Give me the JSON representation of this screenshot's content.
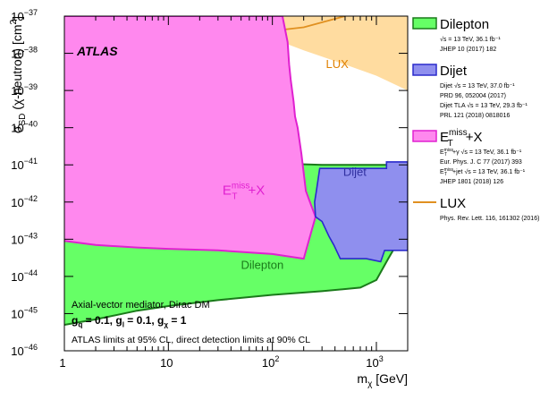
{
  "chart_data": {
    "type": "area",
    "title": "",
    "xlabel": "m_χ [GeV]",
    "ylabel": "σ_SD (χ-neutron) [cm²]",
    "x_scale": "log",
    "y_scale": "log",
    "xlim": [
      1,
      2000
    ],
    "ylim": [
      1e-46,
      1e-37
    ],
    "x_ticks": [
      {
        "value": 1,
        "label": "1"
      },
      {
        "value": 10,
        "label": "10"
      },
      {
        "value": 100,
        "label": "10",
        "sup": "2"
      },
      {
        "value": 1000,
        "label": "10",
        "sup": "3"
      }
    ],
    "y_ticks": [
      {
        "value": 1e-37,
        "label": "10",
        "sup": "−37"
      },
      {
        "value": 1e-38,
        "label": "10",
        "sup": "−38"
      },
      {
        "value": 1e-39,
        "label": "10",
        "sup": "−39"
      },
      {
        "value": 1e-40,
        "label": "10",
        "sup": "−40"
      },
      {
        "value": 1e-41,
        "label": "10",
        "sup": "−41"
      },
      {
        "value": 1e-42,
        "label": "10",
        "sup": "−42"
      },
      {
        "value": 1e-43,
        "label": "10",
        "sup": "−43"
      },
      {
        "value": 1e-44,
        "label": "10",
        "sup": "−44"
      },
      {
        "value": 1e-45,
        "label": "10",
        "sup": "−45"
      },
      {
        "value": 1e-46,
        "label": "10",
        "sup": "−46"
      }
    ],
    "series": [
      {
        "name": "Dilepton",
        "kind": "excluded_region",
        "fill": "#66ff66",
        "stroke": "#1a7a1a",
        "upper_boundary": [
          [
            1,
            6.3e-41
          ],
          [
            1.5,
            4.5e-41
          ],
          [
            2,
            3.5e-41
          ],
          [
            3,
            2.5e-41
          ],
          [
            5,
            1.8e-41
          ],
          [
            10,
            1.4e-41
          ],
          [
            30,
            1.2e-41
          ],
          [
            100,
            1.1e-41
          ],
          [
            300,
            1e-41
          ],
          [
            1000,
            1e-41
          ],
          [
            2000,
            1e-41
          ]
        ],
        "lower_boundary": [
          [
            1,
            5e-46
          ],
          [
            2,
            7e-46
          ],
          [
            5,
            1.2e-45
          ],
          [
            10,
            1.6e-45
          ],
          [
            30,
            2.3e-45
          ],
          [
            100,
            3.2e-45
          ],
          [
            300,
            4e-45
          ],
          [
            700,
            5e-45
          ],
          [
            1000,
            8e-45
          ],
          [
            1300,
            3e-44
          ],
          [
            1500,
            6e-44
          ],
          [
            1700,
            1e-43
          ],
          [
            2000,
            1.2e-43
          ]
        ]
      },
      {
        "name": "E_T^miss+X",
        "kind": "excluded_region",
        "fill": "#ff88ee",
        "stroke": "#e020d0",
        "upper_boundary": [
          [
            1,
            1e-37
          ],
          [
            125,
            1e-37
          ],
          [
            140,
            2e-38
          ],
          [
            145,
            5e-39
          ],
          [
            150,
            2e-39
          ],
          [
            160,
            5e-40
          ],
          [
            165,
            2e-40
          ],
          [
            175,
            1e-40
          ],
          [
            190,
            2e-41
          ],
          [
            210,
            2e-42
          ],
          [
            230,
            1e-42
          ],
          [
            260,
            4e-43
          ]
        ],
        "lower_boundary": [
          [
            1,
            9e-44
          ],
          [
            2,
            7e-44
          ],
          [
            5,
            6e-44
          ],
          [
            10,
            5.5e-44
          ],
          [
            30,
            5e-44
          ],
          [
            100,
            4e-44
          ],
          [
            200,
            3e-44
          ],
          [
            260,
            4e-43
          ]
        ]
      },
      {
        "name": "Dijet",
        "kind": "excluded_region",
        "fill": "#8f8fee",
        "stroke": "#2a2acc",
        "boundary": [
          [
            285,
            8e-42
          ],
          [
            700,
            8e-42
          ],
          [
            1250,
            8e-42
          ],
          [
            1250,
            1.2e-41
          ],
          [
            2000,
            1.2e-41
          ],
          [
            2000,
            5e-44
          ],
          [
            1200,
            5e-44
          ],
          [
            1100,
            2.5e-44
          ],
          [
            800,
            3e-44
          ],
          [
            450,
            3e-44
          ],
          [
            390,
            7e-44
          ],
          [
            350,
            1.2e-43
          ],
          [
            300,
            3e-43
          ],
          [
            260,
            4e-43
          ],
          [
            255,
            1e-42
          ],
          [
            265,
            2e-42
          ],
          [
            285,
            8e-42
          ]
        ]
      },
      {
        "name": "LUX",
        "kind": "excluded_region",
        "fill": "#ffdca0",
        "stroke": "#e09020",
        "boundary": [
          [
            1,
            1e-37
          ],
          [
            2000,
            1e-37
          ],
          [
            2000,
            1e-39
          ],
          [
            1000,
            2.5e-39
          ],
          [
            500,
            5e-39
          ],
          [
            200,
            1.2e-38
          ],
          [
            100,
            2.5e-38
          ],
          [
            50,
            5e-38
          ],
          [
            20,
            1e-37
          ]
        ],
        "curve": [
          [
            20,
            1e-37
          ],
          [
            25,
            6e-38
          ],
          [
            30,
            4e-38
          ],
          [
            40,
            3e-38
          ],
          [
            60,
            3e-38
          ],
          [
            100,
            4e-38
          ],
          [
            200,
            5e-38
          ],
          [
            500,
            1e-37
          ]
        ]
      }
    ],
    "region_labels": [
      {
        "text": "LUX",
        "x": 420,
        "y": 4e-39,
        "color": "#e08000"
      },
      {
        "text": "Dijet",
        "x": 620,
        "y": 5e-42,
        "color": "#3030a0"
      },
      {
        "text": "Dilepton",
        "x": 80,
        "y": 1.6e-44,
        "color": "#1a7a1a"
      }
    ],
    "emiss_region_label": {
      "base": "E",
      "sub": "T",
      "sup": "miss",
      "suffix": "+X",
      "x": 60,
      "y": 2e-42,
      "color": "#e020d0"
    },
    "annotations": {
      "experiment": "ATLAS",
      "mediator": "Axial-vector mediator, Dirac DM",
      "couplings": "g_q = 0.1, g_l = 0.1, g_χ = 1",
      "limits": "ATLAS limits at 95% CL, direct detection limits at 90% CL"
    },
    "legend": {
      "placement": "right",
      "entries": [
        {
          "label": "Dilepton",
          "fill": "#66ff66",
          "stroke": "#1a7a1a",
          "refs": [
            "√s = 13 TeV, 36.1 fb⁻¹",
            "JHEP 10 (2017) 182"
          ]
        },
        {
          "label": "Dijet",
          "fill": "#8f8fee",
          "stroke": "#2a2acc",
          "refs": [
            "Dijet √s = 13 TeV, 37.0 fb⁻¹",
            "PRD 96, 052004 (2017)",
            "Dijet TLA √s = 13 TeV, 29.3 fb⁻¹",
            "PRL 121 (2018) 0818016"
          ]
        },
        {
          "label": "E_T^miss+X",
          "fill": "#ff88ee",
          "stroke": "#e020d0",
          "refs": [
            "E_T^miss+γ √s = 13 TeV, 36.1 fb⁻¹",
            "Eur. Phys. J. C 77 (2017) 393",
            "E_T^miss+jet √s = 13 TeV, 36.1 fb⁻¹",
            "JHEP 1801 (2018) 126"
          ]
        },
        {
          "label": "LUX",
          "fill": "none",
          "stroke": "#e09020",
          "refs": [
            "Phys. Rev. Lett. 116, 161302 (2016)"
          ]
        }
      ]
    }
  }
}
